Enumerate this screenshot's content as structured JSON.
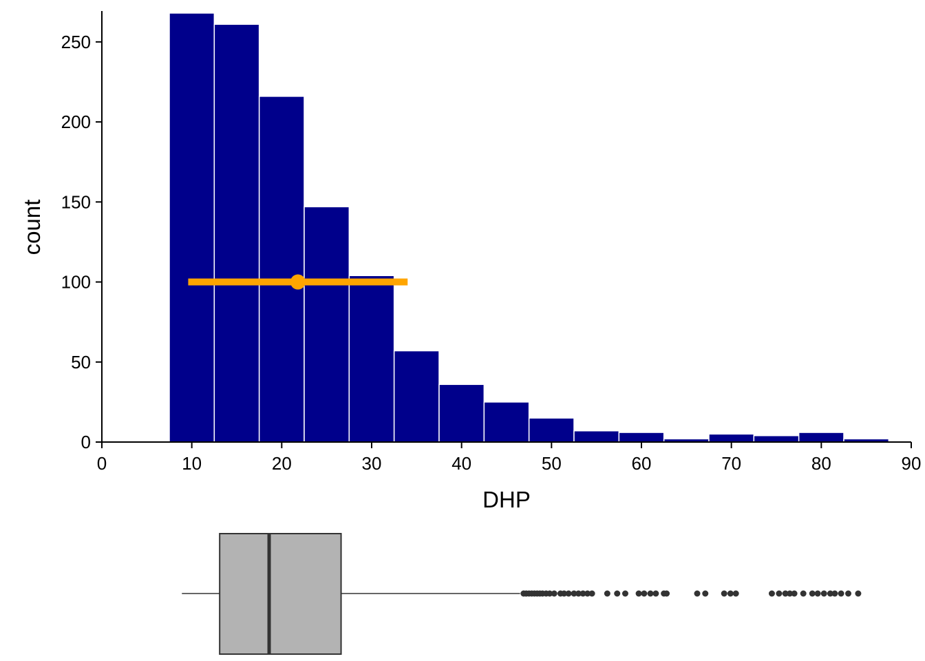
{
  "chart_data": [
    {
      "type": "bar",
      "subtype": "histogram",
      "xlabel": "DHP",
      "ylabel": "count",
      "xlim": [
        0,
        90
      ],
      "ylim": [
        0,
        268
      ],
      "x_ticks": [
        0,
        10,
        20,
        30,
        40,
        50,
        60,
        70,
        80,
        90
      ],
      "y_ticks": [
        0,
        50,
        100,
        150,
        200,
        250
      ],
      "bin_width": 5,
      "bins": [
        {
          "x0": 7.5,
          "x1": 12.5,
          "count": 268
        },
        {
          "x0": 12.5,
          "x1": 17.5,
          "count": 261
        },
        {
          "x0": 17.5,
          "x1": 22.5,
          "count": 216
        },
        {
          "x0": 22.5,
          "x1": 27.5,
          "count": 147
        },
        {
          "x0": 27.5,
          "x1": 32.5,
          "count": 104
        },
        {
          "x0": 32.5,
          "x1": 37.5,
          "count": 57
        },
        {
          "x0": 37.5,
          "x1": 42.5,
          "count": 36
        },
        {
          "x0": 42.5,
          "x1": 47.5,
          "count": 25
        },
        {
          "x0": 47.5,
          "x1": 52.5,
          "count": 15
        },
        {
          "x0": 52.5,
          "x1": 57.5,
          "count": 7
        },
        {
          "x0": 57.5,
          "x1": 62.5,
          "count": 6
        },
        {
          "x0": 62.5,
          "x1": 67.5,
          "count": 2
        },
        {
          "x0": 67.5,
          "x1": 72.5,
          "count": 5
        },
        {
          "x0": 72.5,
          "x1": 77.5,
          "count": 4
        },
        {
          "x0": 77.5,
          "x1": 82.5,
          "count": 6
        },
        {
          "x0": 82.5,
          "x1": 87.5,
          "count": 2
        }
      ],
      "bar_color": "#00008B",
      "bar_edge_color": "#FFFFFF",
      "summary_overlay": {
        "point_x": 21.8,
        "interval": [
          9.6,
          34.0
        ],
        "y": 100,
        "color": "#FFA500"
      },
      "grid": false
    },
    {
      "type": "boxplot",
      "orientation": "horizontal",
      "whisker_low": 8.9,
      "q1": 13.1,
      "median": 18.6,
      "q3": 26.6,
      "whisker_high": 46.5,
      "outliers": [
        46.9,
        47.2,
        47.5,
        47.8,
        48.1,
        48.4,
        48.7,
        49.0,
        49.4,
        49.8,
        50.3,
        51.0,
        51.4,
        51.9,
        52.5,
        53.0,
        53.5,
        54.0,
        54.5,
        56.2,
        57.3,
        58.2,
        59.7,
        60.3,
        61.0,
        61.6,
        62.5,
        62.8,
        66.2,
        67.1,
        69.2,
        69.9,
        70.5,
        74.5,
        75.3,
        76.0,
        76.5,
        77.0,
        78.0,
        79.0,
        79.6,
        80.3,
        81.0,
        81.5,
        82.2,
        83.0,
        84.1
      ],
      "box_fill": "#B3B3B3",
      "line_color": "#333333"
    }
  ]
}
